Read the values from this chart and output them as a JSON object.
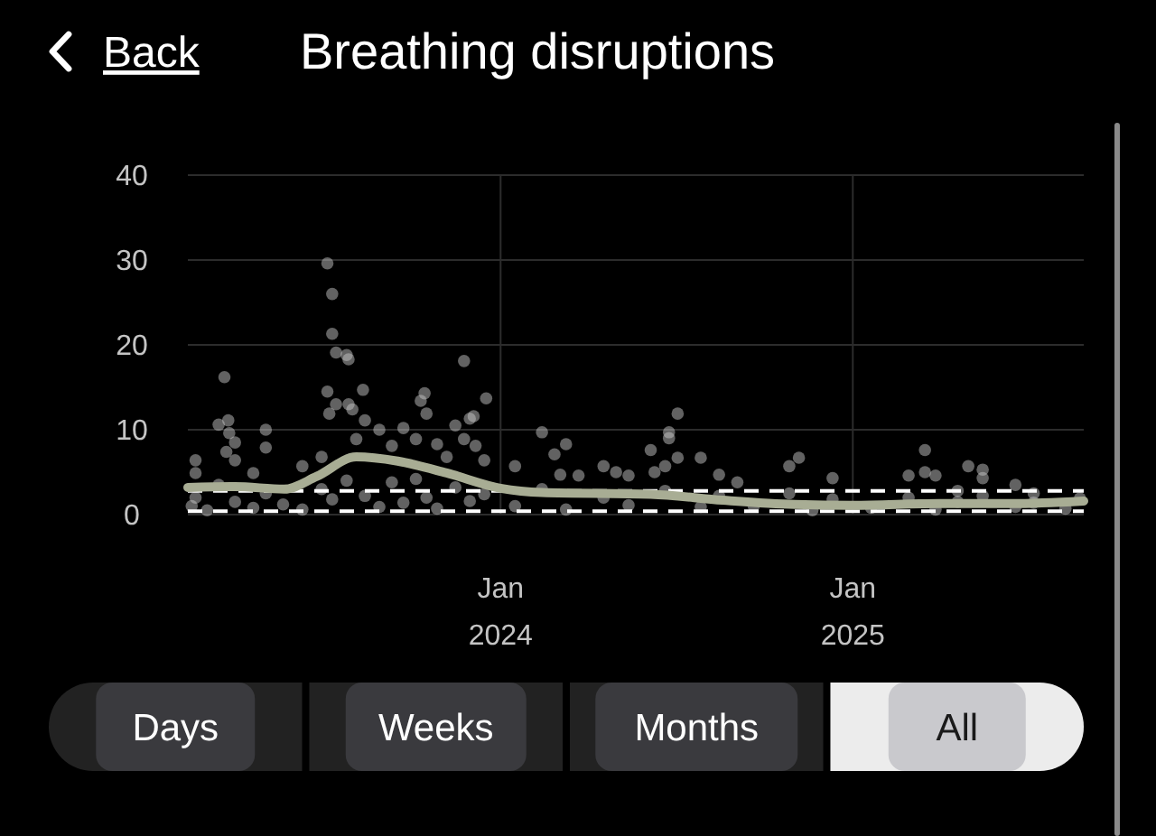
{
  "chart_data": {
    "type": "scatter",
    "title": "Breathing disruptions",
    "annotations": [
      "Back",
      "Days",
      "Weeks",
      "Months",
      "All"
    ],
    "xlim": [
      "2023-02-10",
      "2025-08-29"
    ],
    "xticks": [
      {
        "value": "2024-01-01",
        "label": "Jan\n2024"
      },
      {
        "value": "2025-01-01",
        "label": "Jan\n2025"
      }
    ],
    "ylim": [
      0,
      40
    ],
    "yticks": [
      0,
      10,
      20,
      30,
      40
    ],
    "grid": true,
    "ref_lines": [
      {
        "axis": "y",
        "value": 2.8,
        "color": "#ffffff",
        "line_style": "dashed"
      },
      {
        "axis": "y",
        "value": 0.4,
        "color": "#ffffff",
        "line_style": "dashed"
      }
    ],
    "series": [
      {
        "color": "#c4c4c4",
        "marker": "circle",
        "x": [
          "2023-02-18",
          "2023-02-18",
          "2023-03-14",
          "2023-03-20",
          "2023-03-22",
          "2023-03-24",
          "2023-03-25",
          "2023-03-31",
          "2023-03-31",
          "2023-04-19",
          "2023-05-02",
          "2023-05-02",
          "2023-06-09",
          "2023-06-29",
          "2023-07-05",
          "2023-07-05",
          "2023-07-07",
          "2023-07-10",
          "2023-07-10",
          "2023-07-14",
          "2023-07-14",
          "2023-07-25",
          "2023-07-27",
          "2023-07-27",
          "2023-07-31",
          "2023-08-04",
          "2023-08-11",
          "2023-08-13",
          "2023-08-28",
          "2023-09-10",
          "2023-09-22",
          "2023-10-05",
          "2023-10-10",
          "2023-10-14",
          "2023-10-16",
          "2023-10-27",
          "2023-11-06",
          "2023-11-15",
          "2023-11-24",
          "2023-11-24",
          "2023-11-30",
          "2023-12-04",
          "2023-12-06",
          "2023-12-15",
          "2023-12-17",
          "2024-01-16",
          "2024-02-13",
          "2024-02-26",
          "2024-03-03",
          "2024-03-09",
          "2024-03-22",
          "2024-04-17",
          "2024-04-30",
          "2024-05-13",
          "2024-06-05",
          "2024-06-09",
          "2024-06-20",
          "2024-06-24",
          "2024-06-24",
          "2024-07-03",
          "2024-07-03",
          "2024-07-27",
          "2024-08-15",
          "2024-09-03",
          "2024-10-27",
          "2024-11-06",
          "2024-12-11",
          "2025-02-28",
          "2025-03-17",
          "2025-03-17",
          "2025-03-28",
          "2025-04-20",
          "2025-05-01",
          "2025-05-16",
          "2025-05-16",
          "2025-06-19",
          "2025-07-08",
          "2023-02-14",
          "2023-02-18",
          "2023-03-02",
          "2023-03-14",
          "2023-03-31",
          "2023-04-19",
          "2023-05-02",
          "2023-05-20",
          "2023-06-09",
          "2023-06-29",
          "2023-07-10",
          "2023-07-25",
          "2023-08-13",
          "2023-08-28",
          "2023-09-10",
          "2023-09-22",
          "2023-10-05",
          "2023-10-16",
          "2023-10-27",
          "2023-11-15",
          "2023-11-30",
          "2023-12-15",
          "2024-01-16",
          "2024-02-13",
          "2024-03-09",
          "2024-04-17",
          "2024-05-13",
          "2024-06-20",
          "2024-07-27",
          "2024-08-15",
          "2024-09-20",
          "2024-10-27",
          "2024-11-20",
          "2024-12-11",
          "2025-01-20",
          "2025-02-28",
          "2025-03-28",
          "2025-04-20",
          "2025-05-16",
          "2025-06-19",
          "2025-07-08",
          "2025-08-10",
          "2025-08-25"
        ],
        "values": [
          6.4,
          4.9,
          10.6,
          16.2,
          7.4,
          11.1,
          9.6,
          8.5,
          6.4,
          4.9,
          10.0,
          7.9,
          5.7,
          6.8,
          29.6,
          14.5,
          11.9,
          26.0,
          21.3,
          19.1,
          13.0,
          18.8,
          18.3,
          13.0,
          12.4,
          8.9,
          14.7,
          11.1,
          10.0,
          8.1,
          10.2,
          8.9,
          13.4,
          14.3,
          11.9,
          8.3,
          6.8,
          10.5,
          18.1,
          8.9,
          11.3,
          11.6,
          8.1,
          6.4,
          13.7,
          5.7,
          9.7,
          7.1,
          4.7,
          8.3,
          4.6,
          5.7,
          5.0,
          4.6,
          7.6,
          5.0,
          5.7,
          9.7,
          9.0,
          11.9,
          6.7,
          6.7,
          4.7,
          3.8,
          5.7,
          6.7,
          4.3,
          4.6,
          7.6,
          5.0,
          4.6,
          2.8,
          5.7,
          5.3,
          4.3,
          3.5,
          2.5,
          1.0,
          2.0,
          0.5,
          3.5,
          1.5,
          0.8,
          2.5,
          1.2,
          0.6,
          3.0,
          1.8,
          4.0,
          2.2,
          0.9,
          3.8,
          1.4,
          4.2,
          2.0,
          0.7,
          3.2,
          1.6,
          2.4,
          1.0,
          3.0,
          0.6,
          2.0,
          1.1,
          2.8,
          0.9,
          2.2,
          1.0,
          2.5,
          0.5,
          1.8,
          0.8,
          2.0,
          0.6,
          1.5,
          2.2,
          0.9,
          1.4,
          0.7,
          1.9
        ]
      },
      {
        "type": "line",
        "color": "#a8ad94",
        "x": [
          "2023-02-10",
          "2023-03-31",
          "2023-05-21",
          "2023-06-24",
          "2023-08-04",
          "2023-09-16",
          "2023-11-06",
          "2024-01-01",
          "2024-02-13",
          "2024-06-05",
          "2024-08-19",
          "2024-11-02",
          "2025-01-01",
          "2025-04-01",
          "2025-06-15",
          "2025-08-29"
        ],
        "values": [
          3.2,
          3.3,
          3.0,
          4.5,
          6.8,
          6.3,
          4.9,
          3.1,
          2.6,
          2.4,
          1.7,
          1.2,
          1.1,
          1.3,
          1.3,
          1.6
        ]
      }
    ]
  }
}
